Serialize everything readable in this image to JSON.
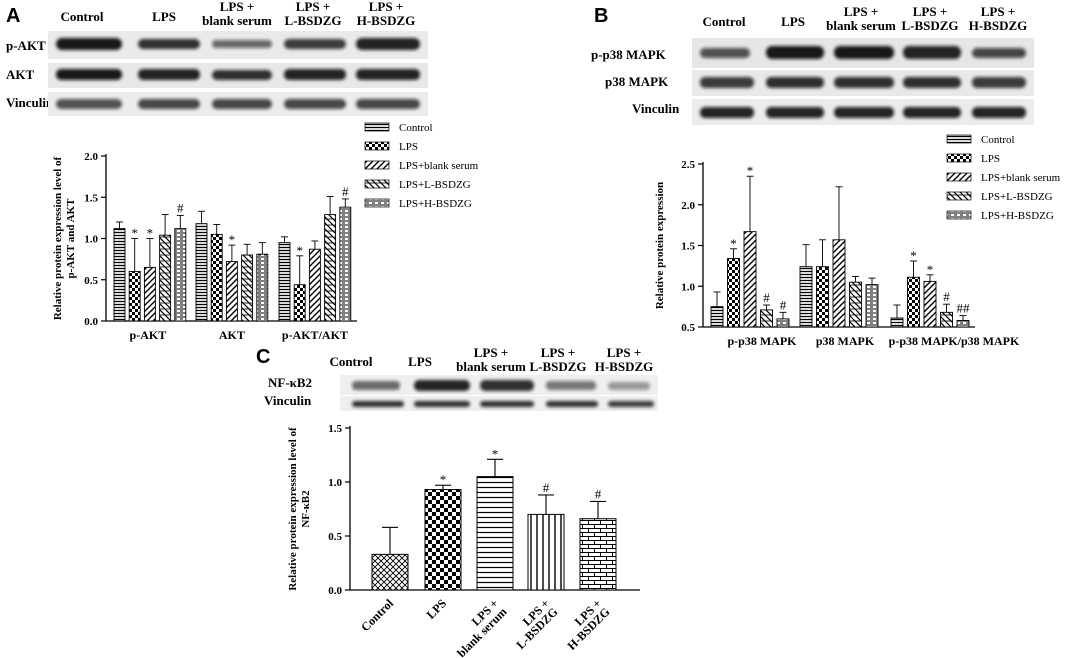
{
  "panels": [
    {
      "letter": "A",
      "blot": {
        "lanes": [
          "Control",
          "LPS",
          "LPS +\nblank serum",
          "LPS +\nL-BSDZG",
          "LPS +\nH-BSDZG"
        ],
        "rows": [
          "p-AKT",
          "AKT",
          "Vinculin"
        ]
      },
      "legend": [
        "Control",
        "LPS",
        "LPS+blank serum",
        "LPS+L-BSDZG",
        "LPS+H-BSDZG"
      ]
    },
    {
      "letter": "B",
      "blot": {
        "lanes": [
          "Control",
          "LPS",
          "LPS +\nblank serum",
          "LPS +\nL-BSDZG",
          "LPS +\nH-BSDZG"
        ],
        "rows": [
          "p-p38 MAPK",
          "p38 MAPK",
          "Vinculin"
        ]
      },
      "legend": [
        "Control",
        "LPS",
        "LPS+blank serum",
        "LPS+L-BSDZG",
        "LPS+H-BSDZG"
      ]
    },
    {
      "letter": "C",
      "blot": {
        "lanes": [
          "Control",
          "LPS",
          "LPS +\nblank serum",
          "LPS +\nL-BSDZG",
          "LPS +\nH-BSDZG"
        ],
        "rows": [
          "NF-κB2",
          "Vinculin"
        ]
      },
      "legend": []
    }
  ],
  "chart_data": [
    {
      "panel": "A",
      "type": "bar",
      "categories": [
        "p-AKT",
        "AKT",
        "p-AKT/AKT"
      ],
      "ylabel": "Relative protein expression level of\np-AKT and AKT",
      "ylim": [
        0.0,
        2.0
      ],
      "yticks": [
        "0.0",
        "0.5",
        "1.0",
        "1.5",
        "2.0"
      ],
      "series": [
        {
          "name": "Control",
          "values": [
            1.12,
            1.18,
            0.95
          ],
          "errors": [
            0.08,
            0.15,
            0.07
          ],
          "marks": [
            "",
            "",
            ""
          ]
        },
        {
          "name": "LPS",
          "values": [
            0.6,
            1.05,
            0.44
          ],
          "errors": [
            0.4,
            0.12,
            0.35
          ],
          "marks": [
            "*",
            "",
            "*"
          ]
        },
        {
          "name": "LPS+blank serum",
          "values": [
            0.65,
            0.72,
            0.87
          ],
          "errors": [
            0.35,
            0.2,
            0.1
          ],
          "marks": [
            "*",
            "*",
            ""
          ]
        },
        {
          "name": "LPS+L-BSDZG",
          "values": [
            1.04,
            0.8,
            1.29
          ],
          "errors": [
            0.25,
            0.13,
            0.22
          ],
          "marks": [
            "",
            "",
            ""
          ]
        },
        {
          "name": "LPS+H-BSDZG",
          "values": [
            1.12,
            0.81,
            1.38
          ],
          "errors": [
            0.16,
            0.14,
            0.1
          ],
          "marks": [
            "#",
            "",
            "#"
          ]
        }
      ]
    },
    {
      "panel": "B",
      "type": "bar",
      "categories": [
        "p-p38 MAPK",
        "p38 MAPK",
        "p-p38 MAPK/p38 MAPK"
      ],
      "ylabel": "Relative protein expression",
      "ylim": [
        0.5,
        2.5
      ],
      "yticks": [
        "0.5",
        "1.0",
        "1.5",
        "2.0",
        "2.5"
      ],
      "series": [
        {
          "name": "Control",
          "values": [
            0.75,
            1.24,
            0.61
          ],
          "errors": [
            0.18,
            0.27,
            0.16
          ],
          "marks": [
            "",
            "",
            ""
          ]
        },
        {
          "name": "LPS",
          "values": [
            1.34,
            1.24,
            1.11
          ],
          "errors": [
            0.12,
            0.33,
            0.2
          ],
          "marks": [
            "*",
            "",
            "*"
          ]
        },
        {
          "name": "LPS+blank serum",
          "values": [
            1.67,
            1.57,
            1.06
          ],
          "errors": [
            0.68,
            0.65,
            0.08
          ],
          "marks": [
            "*",
            "",
            "*"
          ]
        },
        {
          "name": "LPS+L-BSDZG",
          "values": [
            0.71,
            1.05,
            0.68
          ],
          "errors": [
            0.06,
            0.07,
            0.1
          ],
          "marks": [
            "#",
            "",
            "#"
          ]
        },
        {
          "name": "LPS+H-BSDZG",
          "values": [
            0.6,
            1.02,
            0.58
          ],
          "errors": [
            0.08,
            0.08,
            0.06
          ],
          "marks": [
            "#",
            "",
            "##"
          ]
        }
      ]
    },
    {
      "panel": "C",
      "type": "bar",
      "categories": [
        "Control",
        "LPS",
        "LPS +\nblank serum",
        "LPS +\nL-BSDZG",
        "LPS +\nH-BSDZG"
      ],
      "ylabel": "Relative protein expression level of\nNF-κB2",
      "ylim": [
        0.0,
        1.5
      ],
      "yticks": [
        "0.0",
        "0.5",
        "1.0",
        "1.5"
      ],
      "values": [
        0.33,
        0.93,
        1.05,
        0.7,
        0.66
      ],
      "errors": [
        0.25,
        0.04,
        0.16,
        0.18,
        0.16
      ],
      "marks": [
        "",
        "*",
        "*",
        "#",
        "#"
      ]
    }
  ]
}
